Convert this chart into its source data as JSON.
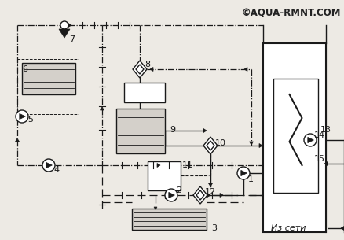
{
  "bg_color": "#edeae4",
  "line_color": "#1a1a1a",
  "watermark": "©AQUA-RMNT.COM",
  "iz_seti": "Из сети"
}
